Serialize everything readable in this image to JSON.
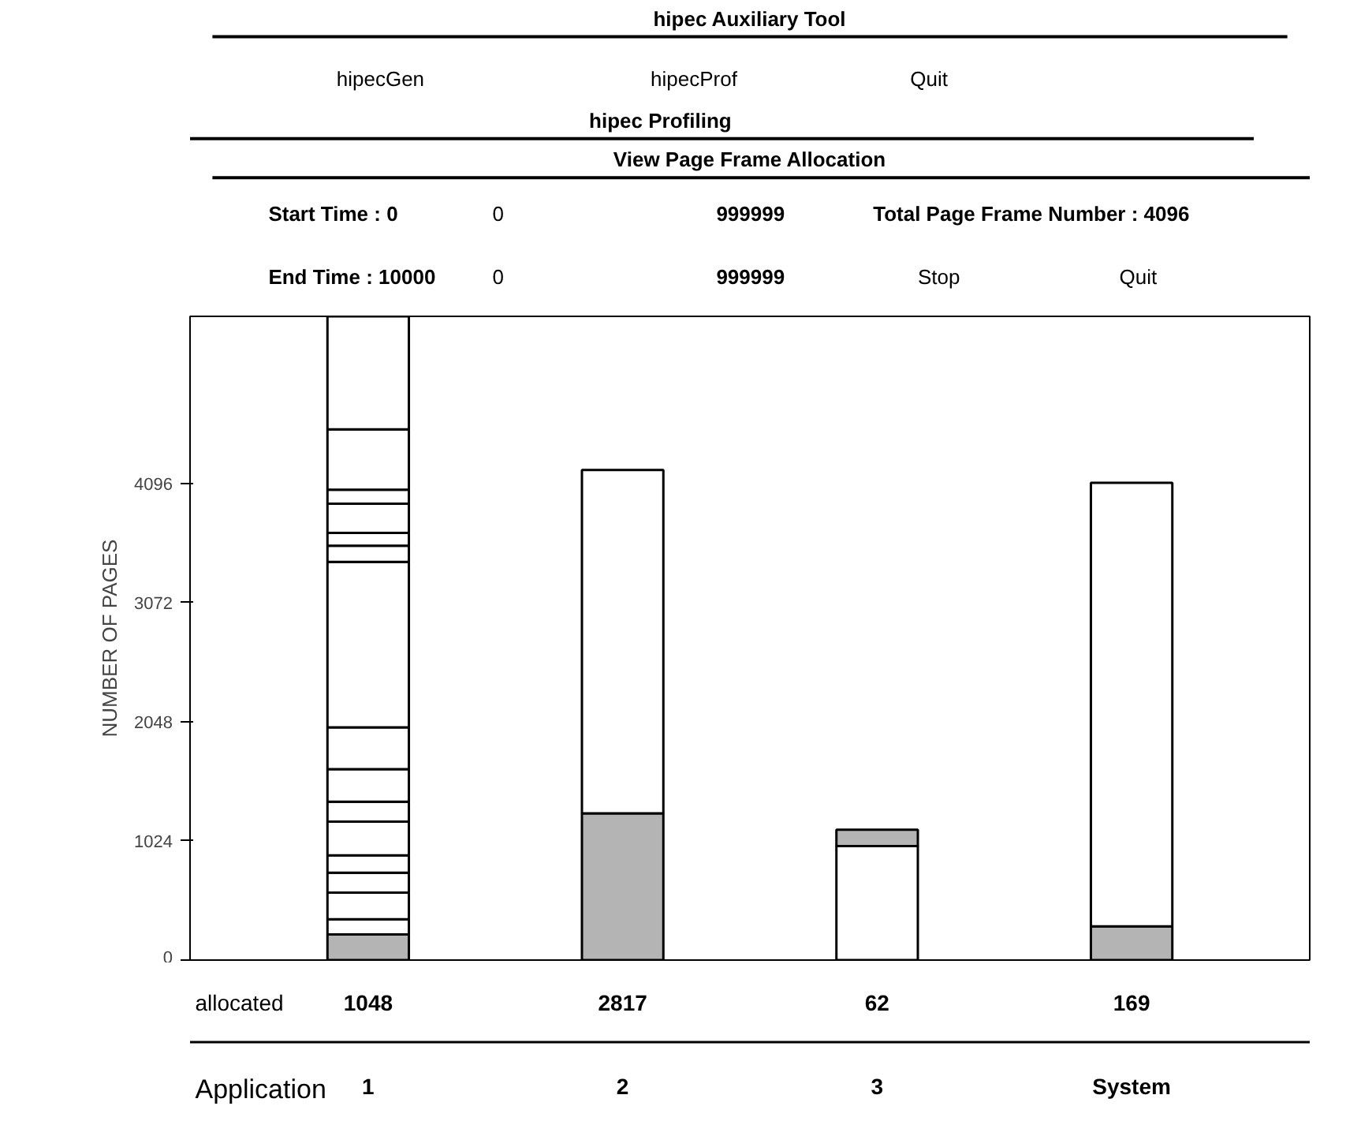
{
  "chart_data": {
    "type": "bar",
    "stacked": true,
    "title": "View Page Frame Allocation",
    "xlabel": "Application",
    "ylabel": "NUMBER OF PAGES",
    "categories": [
      "1",
      "2",
      "3",
      "System"
    ],
    "ylim": [
      0,
      5530
    ],
    "yticks": [
      0,
      1024,
      2048,
      3072,
      4096
    ],
    "grid": false,
    "series": [
      {
        "colors": [
          "#b4b4b4",
          "#b4b4b4",
          "#ffffff",
          "#b4b4b4"
        ],
        "values": [
          220,
          1260,
          980,
          290
        ]
      },
      {
        "colors": [
          "#ffffff",
          "#ffffff",
          "#b4b4b4",
          "#ffffff"
        ],
        "values": [
          130,
          2950,
          140,
          3810
        ]
      },
      {
        "color": "#ffffff",
        "values": [
          230,
          null,
          null,
          null
        ]
      },
      {
        "color": "#ffffff",
        "values": [
          170,
          null,
          null,
          null
        ]
      },
      {
        "color": "#ffffff",
        "values": [
          150,
          null,
          null,
          null
        ]
      },
      {
        "color": "#ffffff",
        "values": [
          290,
          null,
          null,
          null
        ]
      },
      {
        "color": "#ffffff",
        "values": [
          170,
          null,
          null,
          null
        ]
      },
      {
        "color": "#ffffff",
        "values": [
          280,
          null,
          null,
          null
        ]
      },
      {
        "color": "#ffffff",
        "values": [
          360,
          null,
          null,
          null
        ]
      },
      {
        "color": "#ffffff",
        "values": [
          1420,
          null,
          null,
          null
        ]
      },
      {
        "color": "#ffffff",
        "values": [
          140,
          null,
          null,
          null
        ]
      },
      {
        "color": "#ffffff",
        "values": [
          110,
          null,
          null,
          null
        ]
      },
      {
        "color": "#ffffff",
        "values": [
          250,
          null,
          null,
          null
        ]
      },
      {
        "color": "#ffffff",
        "values": [
          120,
          null,
          null,
          null
        ]
      },
      {
        "color": "#ffffff",
        "values": [
          520,
          null,
          null,
          null
        ]
      },
      {
        "color": "#ffffff",
        "values": [
          970,
          null,
          null,
          null
        ]
      }
    ],
    "annotations": [
      "hipec Auxiliary Tool",
      "hipecGen",
      "hipecProf",
      "Quit",
      "hipec Profiling",
      "Start Time : 0",
      "0",
      "999999",
      "Total Page Frame Number : 4096",
      "End Time : 10000",
      "0",
      "999999",
      "Stop",
      "Quit",
      "allocated",
      "1048",
      "2817",
      "62",
      "169"
    ]
  }
}
